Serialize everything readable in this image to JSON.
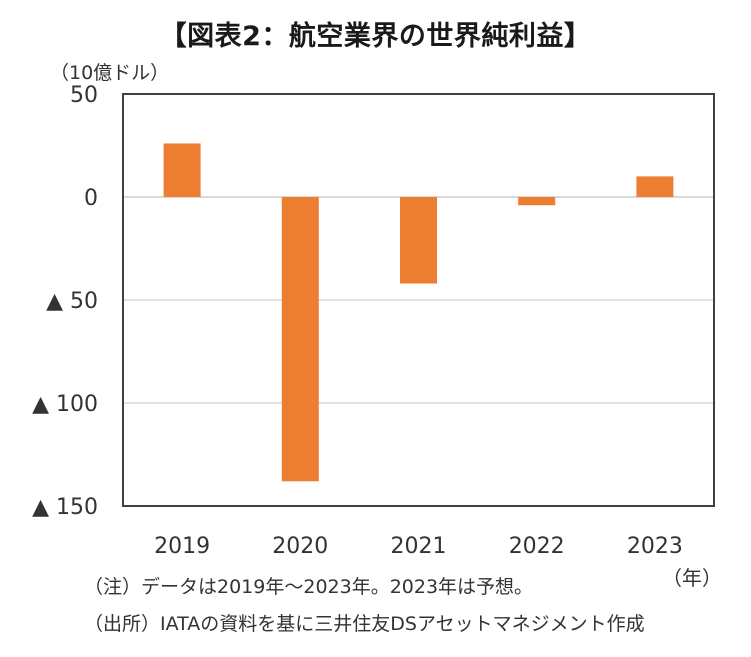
{
  "title": "【図表2：航空業界の世界純利益】",
  "unit_label": "（10億ドル）",
  "x_unit_label": "（年）",
  "notes": {
    "note": "（注）データは2019年～2023年。2023年は予想。",
    "source": "（出所）IATAの資料を基に三井住友DSアセットマネジメント作成"
  },
  "colors": {
    "bar": "#ED7D31",
    "frame": "#404040",
    "grid": "#D9D9D9"
  },
  "chart_data": {
    "type": "bar",
    "categories": [
      "2019",
      "2020",
      "2021",
      "2022",
      "2023"
    ],
    "values": [
      26,
      -138,
      -42,
      -4,
      10
    ],
    "ylim": [
      -150,
      50
    ],
    "yticks": [
      50,
      0,
      -50,
      -100,
      -150
    ],
    "ytick_labels": [
      "50",
      "0",
      "▲ 50",
      "▲ 100",
      "▲ 150"
    ],
    "ylabel": "（10億ドル）",
    "xlabel": "（年）",
    "grid": true
  }
}
